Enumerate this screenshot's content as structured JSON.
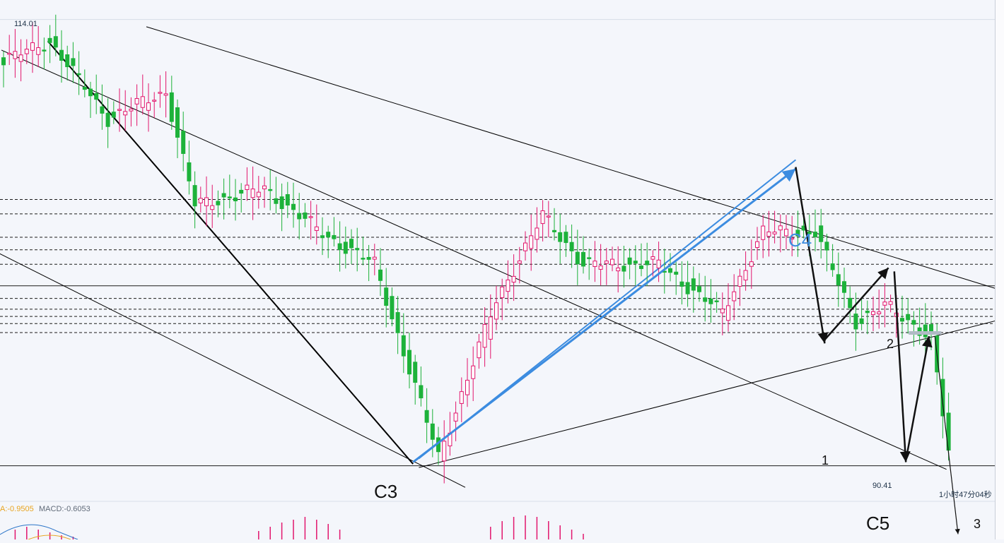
{
  "chart_data": {
    "type": "candlestick",
    "title": "",
    "xlabel": "",
    "ylabel": "",
    "price_high_label": "114.01",
    "price_low_label": "90.41",
    "timer_label": "1小时47分04秒",
    "indicator_label_a": "A:-0.9505",
    "indicator_label_b": "MACD:-0.6053",
    "wave_labels": {
      "c3": "C3",
      "c4": "C4",
      "c5": "C5",
      "w1": "1",
      "w2": "2",
      "w3": "3"
    },
    "ylim": [
      88.5,
      115.5
    ],
    "horizontal_levels": [
      105.2,
      104.4,
      103.1,
      102.4,
      101.6,
      100.4,
      99.7,
      99.1,
      98.7,
      98.3,
      97.8,
      90.4
    ],
    "anchors": [
      {
        "x": 0,
        "price": 112.9
      },
      {
        "x": 8,
        "price": 114.0
      },
      {
        "x": 18,
        "price": 109.7
      },
      {
        "x": 28,
        "price": 111.2
      },
      {
        "x": 33,
        "price": 104.9
      },
      {
        "x": 45,
        "price": 105.8
      },
      {
        "x": 55,
        "price": 103.3
      },
      {
        "x": 64,
        "price": 101.6
      },
      {
        "x": 75,
        "price": 90.9
      },
      {
        "x": 85,
        "price": 99.6
      },
      {
        "x": 93,
        "price": 104.3
      },
      {
        "x": 100,
        "price": 101.6
      },
      {
        "x": 113,
        "price": 101.6
      },
      {
        "x": 124,
        "price": 98.9
      },
      {
        "x": 131,
        "price": 103.4
      },
      {
        "x": 140,
        "price": 103.4
      },
      {
        "x": 147,
        "price": 98.4
      },
      {
        "x": 152,
        "price": 99.3
      },
      {
        "x": 160,
        "price": 97.6
      },
      {
        "x": 163,
        "price": 91.1
      }
    ]
  },
  "colors": {
    "up": "#e2166d",
    "down": "#1db23a",
    "blue_line": "#3c8ce0",
    "background": "#f4f6fb"
  }
}
